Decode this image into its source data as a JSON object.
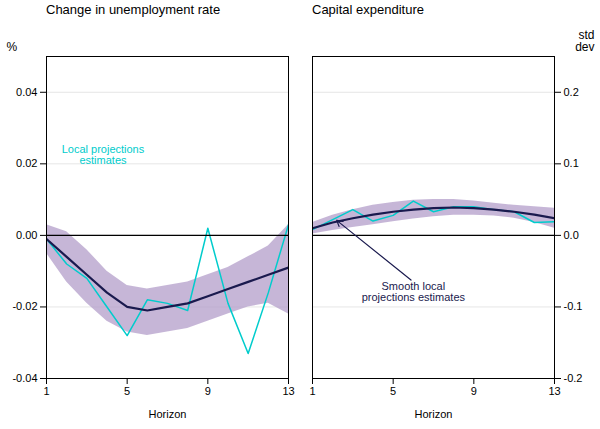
{
  "chart_data": [
    {
      "type": "line",
      "title": "Change in unemployment rate",
      "xlabel": "Horizon",
      "ylabel": "%",
      "x": [
        1,
        2,
        3,
        4,
        5,
        6,
        7,
        8,
        9,
        10,
        11,
        12,
        13
      ],
      "band": {
        "color": "#b39dca",
        "lower": [
          -0.005,
          -0.013,
          -0.019,
          -0.024,
          -0.027,
          -0.028,
          -0.027,
          -0.026,
          -0.024,
          -0.022,
          -0.02,
          -0.019,
          -0.022
        ],
        "upper": [
          0.003,
          0.001,
          -0.004,
          -0.01,
          -0.014,
          -0.015,
          -0.014,
          -0.013,
          -0.011,
          -0.009,
          -0.006,
          -0.003,
          0.003
        ]
      },
      "series": [
        {
          "color": "#00cccc",
          "values": [
            -0.001,
            -0.008,
            -0.012,
            -0.02,
            -0.028,
            -0.018,
            -0.019,
            -0.021,
            0.002,
            -0.019,
            -0.033,
            -0.016,
            0.003
          ]
        },
        {
          "color": "#1a1a4e",
          "values": [
            -0.001,
            -0.006,
            -0.011,
            -0.016,
            -0.02,
            -0.021,
            -0.02,
            -0.019,
            -0.017,
            -0.015,
            -0.013,
            -0.011,
            -0.009
          ]
        }
      ],
      "xlim": [
        1,
        13
      ],
      "xticks": [
        1,
        5,
        9,
        13
      ],
      "ylim": [
        -0.04,
        0.05
      ],
      "yticks": [
        -0.04,
        -0.02,
        {
          "value": 0,
          "label": "0.00"
        },
        0.02,
        0.04
      ],
      "grid": true,
      "annotations": [
        {
          "text": "Local projections\nestimates",
          "x": 3.8,
          "y": 0.02,
          "color": "#00cccc"
        }
      ]
    },
    {
      "type": "line",
      "title": "Capital expenditure",
      "xlabel": "Horizon",
      "ylabel": "std\ndev",
      "x": [
        1,
        2,
        3,
        4,
        5,
        6,
        7,
        8,
        9,
        10,
        11,
        12,
        13
      ],
      "band": {
        "color": "#b39dca",
        "lower": [
          0.002,
          0.007,
          0.011,
          0.015,
          0.019,
          0.023,
          0.026,
          0.028,
          0.028,
          0.027,
          0.024,
          0.018,
          0.01
        ],
        "upper": [
          0.018,
          0.028,
          0.036,
          0.042,
          0.046,
          0.049,
          0.05,
          0.05,
          0.048,
          0.045,
          0.042,
          0.04,
          0.038
        ]
      },
      "series": [
        {
          "color": "#00cccc",
          "values": [
            0.008,
            0.022,
            0.036,
            0.02,
            0.028,
            0.048,
            0.033,
            0.04,
            0.04,
            0.036,
            0.033,
            0.018,
            0.019
          ]
        },
        {
          "color": "#1a1a4e",
          "values": [
            0.01,
            0.018,
            0.024,
            0.029,
            0.033,
            0.036,
            0.038,
            0.039,
            0.038,
            0.036,
            0.033,
            0.029,
            0.024
          ]
        }
      ],
      "xlim": [
        1,
        13
      ],
      "xticks": [
        1,
        5,
        9,
        13
      ],
      "ylim": [
        -0.2,
        0.25
      ],
      "yticks": [
        -0.2,
        -0.1,
        {
          "value": 0,
          "label": "0.0"
        },
        0.1,
        0.2
      ],
      "grid": true,
      "annotations": [
        {
          "text": "Smooth local\nprojections estimates",
          "x": 6.0,
          "y": -0.065,
          "color": "#1a1a4e",
          "arrow_to": [
            2.2,
            0.021
          ]
        }
      ]
    }
  ]
}
